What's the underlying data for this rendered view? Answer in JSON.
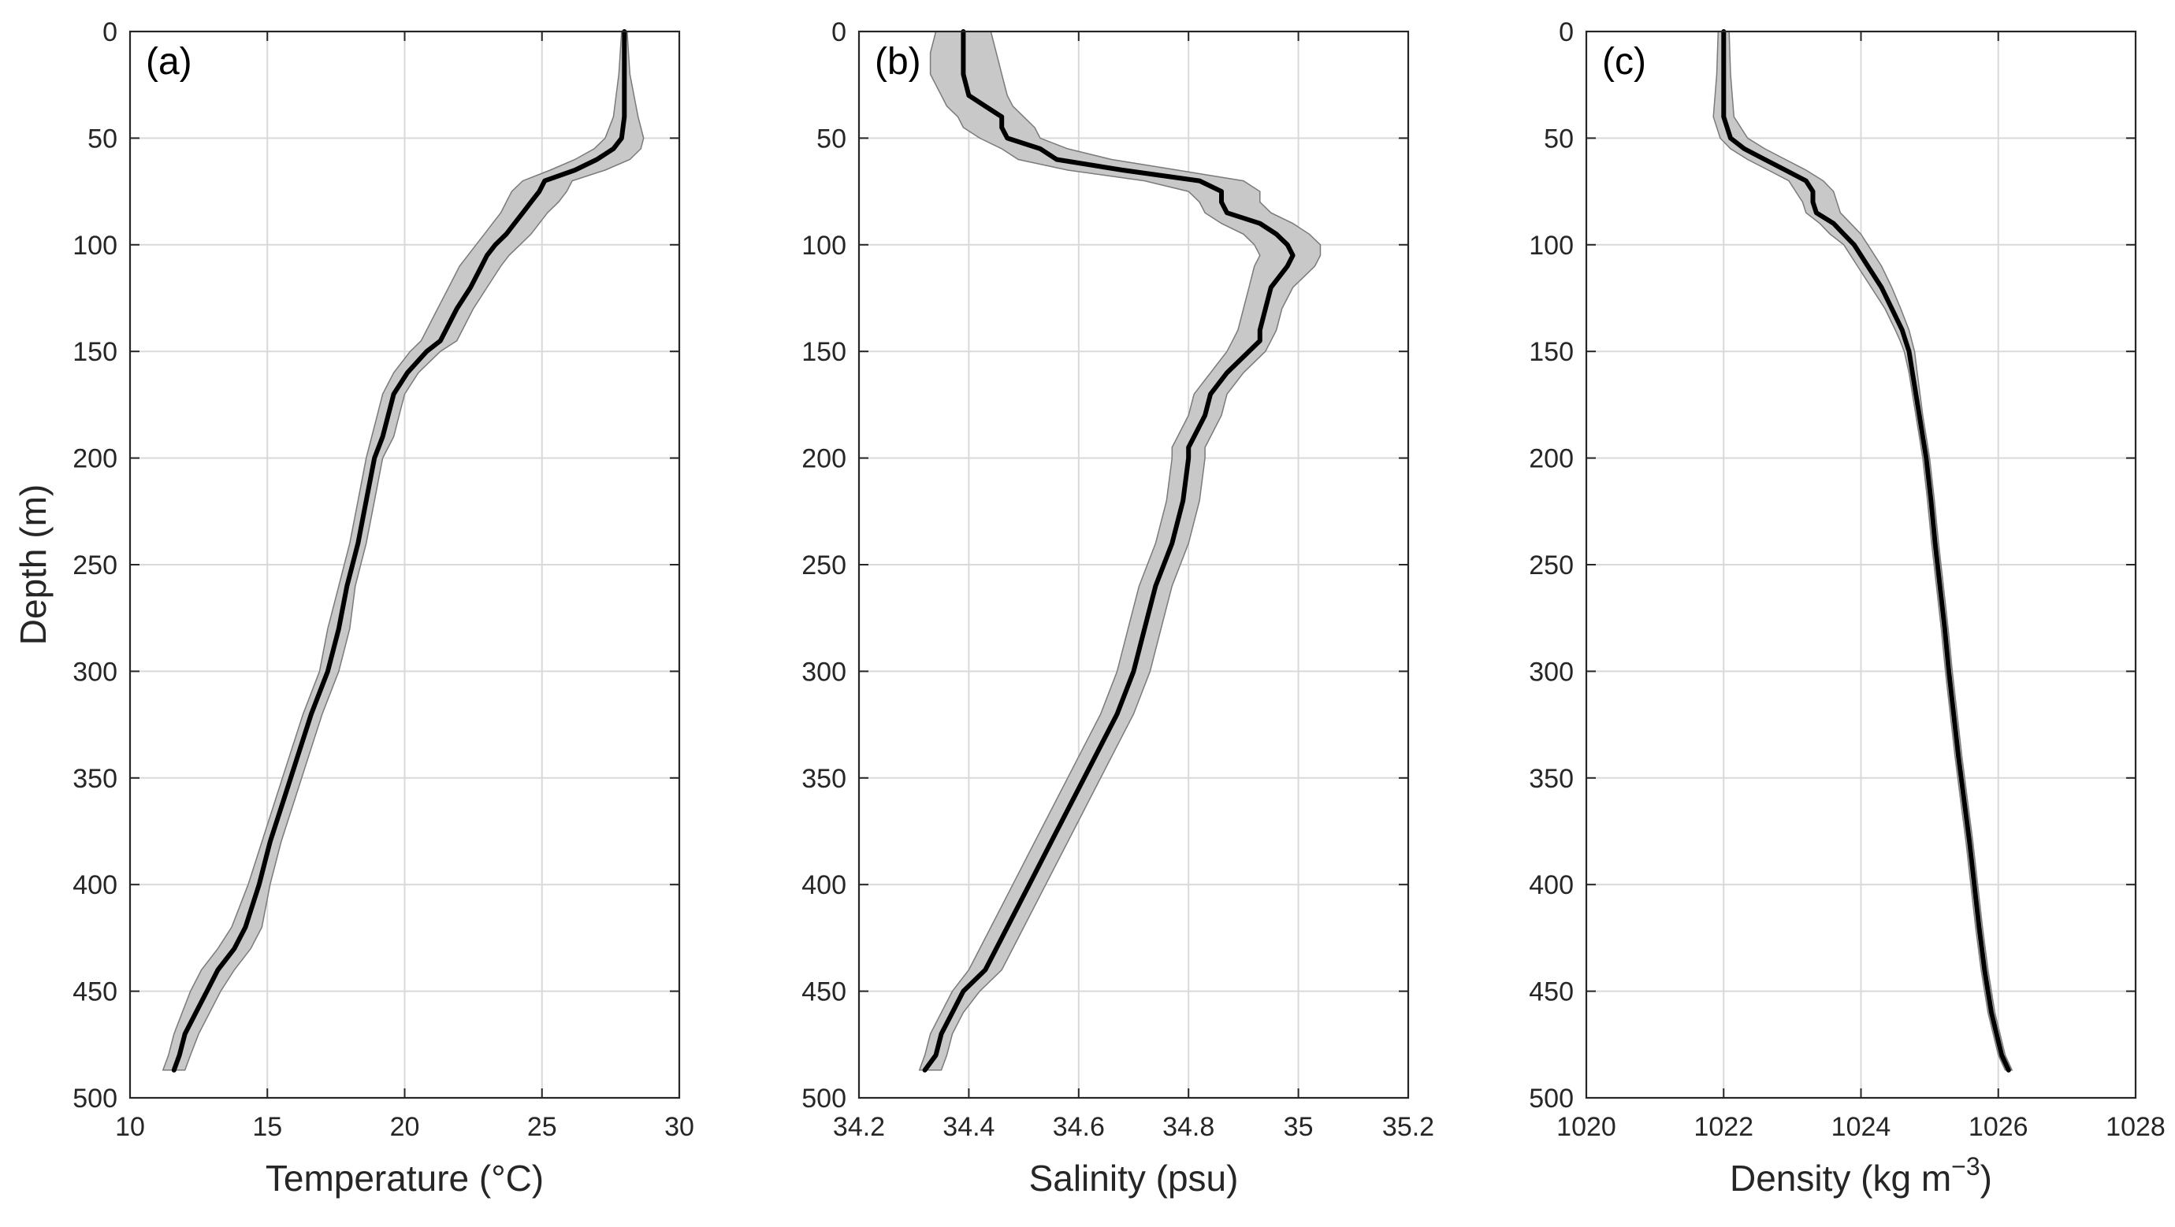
{
  "colors": {
    "band": "#c8c8c8",
    "band_edge": "#7a7a7a",
    "line": "#000000",
    "grid": "#d9d9d9",
    "axis": "#262626"
  },
  "chart_data": [
    {
      "type": "line",
      "panel_label": "(a)",
      "xlabel": "Temperature (°C)",
      "ylabel": "Depth (m)",
      "xlim": [
        10,
        30
      ],
      "ylim": [
        0,
        500
      ],
      "y_reversed": true,
      "xticks": [
        "10",
        "15",
        "20",
        "25",
        "30"
      ],
      "yticks": [
        "0",
        "50",
        "100",
        "150",
        "200",
        "250",
        "300",
        "350",
        "400",
        "450",
        "500"
      ],
      "grid": true,
      "series": [
        {
          "name": "mean",
          "depth": [
            0,
            20,
            40,
            50,
            55,
            60,
            65,
            70,
            75,
            80,
            85,
            90,
            95,
            100,
            105,
            110,
            120,
            130,
            140,
            145,
            150,
            160,
            170,
            180,
            190,
            200,
            220,
            240,
            260,
            280,
            300,
            320,
            340,
            360,
            380,
            400,
            420,
            430,
            440,
            450,
            460,
            470,
            480,
            487
          ],
          "values": [
            28.0,
            28.0,
            28.0,
            27.9,
            27.6,
            27.0,
            26.2,
            25.1,
            24.9,
            24.6,
            24.3,
            24.0,
            23.7,
            23.3,
            23.0,
            22.8,
            22.4,
            21.9,
            21.5,
            21.3,
            20.8,
            20.1,
            19.6,
            19.4,
            19.2,
            18.9,
            18.6,
            18.3,
            17.9,
            17.6,
            17.2,
            16.6,
            16.1,
            15.6,
            15.1,
            14.7,
            14.2,
            13.8,
            13.2,
            12.8,
            12.4,
            12.0,
            11.8,
            11.6
          ]
        },
        {
          "name": "spread_low",
          "depth": [
            0,
            20,
            40,
            50,
            55,
            60,
            65,
            70,
            75,
            80,
            85,
            90,
            95,
            100,
            105,
            110,
            120,
            130,
            140,
            145,
            150,
            160,
            170,
            180,
            190,
            200,
            220,
            240,
            260,
            280,
            300,
            320,
            340,
            360,
            380,
            400,
            420,
            430,
            440,
            450,
            460,
            470,
            480,
            487
          ],
          "values": [
            27.9,
            27.8,
            27.6,
            27.3,
            26.9,
            26.2,
            25.3,
            24.3,
            23.9,
            23.7,
            23.5,
            23.2,
            22.9,
            22.6,
            22.3,
            22.0,
            21.6,
            21.2,
            20.8,
            20.6,
            20.2,
            19.6,
            19.2,
            19.0,
            18.8,
            18.6,
            18.3,
            18.0,
            17.6,
            17.2,
            16.9,
            16.3,
            15.8,
            15.3,
            14.8,
            14.3,
            13.7,
            13.2,
            12.6,
            12.2,
            11.9,
            11.6,
            11.4,
            11.2
          ]
        },
        {
          "name": "spread_high",
          "depth": [
            0,
            20,
            40,
            50,
            55,
            60,
            65,
            70,
            75,
            80,
            85,
            90,
            95,
            100,
            105,
            110,
            120,
            130,
            140,
            145,
            150,
            160,
            170,
            180,
            190,
            200,
            220,
            240,
            260,
            280,
            300,
            320,
            340,
            360,
            380,
            400,
            420,
            430,
            440,
            450,
            460,
            470,
            480,
            487
          ],
          "values": [
            28.1,
            28.2,
            28.5,
            28.7,
            28.6,
            28.2,
            27.3,
            26.1,
            25.9,
            25.6,
            25.2,
            24.9,
            24.6,
            24.2,
            23.8,
            23.5,
            23.0,
            22.5,
            22.1,
            21.9,
            21.3,
            20.5,
            20.0,
            19.8,
            19.6,
            19.2,
            18.9,
            18.6,
            18.2,
            18.0,
            17.6,
            17.0,
            16.5,
            16.0,
            15.5,
            15.1,
            14.8,
            14.4,
            13.8,
            13.3,
            12.9,
            12.5,
            12.2,
            12.0
          ]
        }
      ]
    },
    {
      "type": "line",
      "panel_label": "(b)",
      "xlabel": "Salinity (psu)",
      "ylabel": "",
      "xlim": [
        34.2,
        35.2
      ],
      "ylim": [
        0,
        500
      ],
      "y_reversed": true,
      "xticks": [
        "34.2",
        "34.4",
        "34.6",
        "34.8",
        "35",
        "35.2"
      ],
      "yticks": [
        "0",
        "50",
        "100",
        "150",
        "200",
        "250",
        "300",
        "350",
        "400",
        "450",
        "500"
      ],
      "grid": true,
      "series": [
        {
          "name": "mean",
          "depth": [
            0,
            10,
            20,
            30,
            35,
            40,
            45,
            50,
            55,
            60,
            65,
            70,
            75,
            80,
            85,
            90,
            95,
            100,
            105,
            110,
            120,
            130,
            140,
            145,
            150,
            160,
            170,
            180,
            190,
            195,
            200,
            220,
            240,
            260,
            280,
            300,
            320,
            340,
            360,
            380,
            400,
            420,
            440,
            450,
            460,
            470,
            480,
            487
          ],
          "values": [
            34.39,
            34.39,
            34.39,
            34.4,
            34.43,
            34.46,
            34.46,
            34.47,
            34.53,
            34.56,
            34.68,
            34.82,
            34.86,
            34.86,
            34.87,
            34.93,
            34.96,
            34.98,
            34.99,
            34.98,
            34.95,
            34.94,
            34.93,
            34.93,
            34.91,
            34.87,
            34.84,
            34.83,
            34.81,
            34.8,
            34.8,
            34.79,
            34.77,
            34.74,
            34.72,
            34.7,
            34.67,
            34.63,
            34.59,
            34.55,
            34.51,
            34.47,
            34.43,
            34.39,
            34.37,
            34.35,
            34.34,
            34.32
          ]
        },
        {
          "name": "spread_low",
          "depth": [
            0,
            10,
            20,
            30,
            35,
            40,
            45,
            50,
            55,
            60,
            65,
            70,
            75,
            80,
            85,
            90,
            95,
            100,
            105,
            110,
            120,
            130,
            140,
            145,
            150,
            160,
            170,
            180,
            190,
            195,
            200,
            220,
            240,
            260,
            280,
            300,
            320,
            340,
            360,
            380,
            400,
            420,
            440,
            450,
            460,
            470,
            480,
            487
          ],
          "values": [
            34.34,
            34.33,
            34.33,
            34.35,
            34.36,
            34.38,
            34.39,
            34.42,
            34.46,
            34.49,
            34.58,
            34.72,
            34.8,
            34.82,
            34.83,
            34.86,
            34.9,
            34.92,
            34.93,
            34.92,
            34.91,
            34.9,
            34.89,
            34.88,
            34.87,
            34.84,
            34.81,
            34.8,
            34.78,
            34.77,
            34.77,
            34.76,
            34.74,
            34.71,
            34.69,
            34.67,
            34.64,
            34.6,
            34.56,
            34.52,
            34.48,
            34.44,
            34.4,
            34.37,
            34.35,
            34.33,
            34.32,
            34.31
          ]
        },
        {
          "name": "spread_high",
          "depth": [
            0,
            10,
            20,
            30,
            35,
            40,
            45,
            50,
            55,
            60,
            65,
            70,
            75,
            80,
            85,
            90,
            95,
            100,
            105,
            110,
            120,
            130,
            140,
            145,
            150,
            160,
            170,
            180,
            190,
            195,
            200,
            220,
            240,
            260,
            280,
            300,
            320,
            340,
            360,
            380,
            400,
            420,
            440,
            450,
            460,
            470,
            480,
            487
          ],
          "values": [
            34.44,
            34.45,
            34.46,
            34.47,
            34.48,
            34.5,
            34.52,
            34.53,
            34.58,
            34.66,
            34.78,
            34.9,
            34.93,
            34.93,
            34.95,
            34.99,
            35.02,
            35.04,
            35.04,
            35.03,
            34.99,
            34.97,
            34.96,
            34.95,
            34.94,
            34.9,
            34.87,
            34.86,
            34.84,
            34.83,
            34.83,
            34.82,
            34.8,
            34.77,
            34.75,
            34.73,
            34.7,
            34.66,
            34.62,
            34.58,
            34.54,
            34.5,
            34.46,
            34.42,
            34.39,
            34.37,
            34.36,
            34.35
          ]
        }
      ]
    },
    {
      "type": "line",
      "panel_label": "(c)",
      "xlabel": "Density (kg m",
      "xlabel_sup": "−3",
      "xlabel_end": ")",
      "ylabel": "",
      "xlim": [
        1020,
        1028
      ],
      "ylim": [
        0,
        500
      ],
      "y_reversed": true,
      "xticks": [
        "1020",
        "1022",
        "1024",
        "1026",
        "1028"
      ],
      "yticks": [
        "0",
        "50",
        "100",
        "150",
        "200",
        "250",
        "300",
        "350",
        "400",
        "450",
        "500"
      ],
      "grid": true,
      "series": [
        {
          "name": "mean",
          "depth": [
            0,
            20,
            40,
            50,
            55,
            60,
            65,
            70,
            75,
            80,
            85,
            90,
            95,
            100,
            110,
            120,
            130,
            140,
            145,
            150,
            160,
            170,
            180,
            190,
            200,
            220,
            240,
            260,
            280,
            300,
            320,
            340,
            360,
            380,
            400,
            420,
            440,
            460,
            480,
            487
          ],
          "values": [
            1022.0,
            1022.0,
            1022.0,
            1022.1,
            1022.3,
            1022.6,
            1022.9,
            1023.2,
            1023.3,
            1023.3,
            1023.35,
            1023.6,
            1023.75,
            1023.9,
            1024.1,
            1024.3,
            1024.45,
            1024.6,
            1024.65,
            1024.7,
            1024.75,
            1024.8,
            1024.85,
            1024.9,
            1024.95,
            1025.02,
            1025.08,
            1025.15,
            1025.22,
            1025.28,
            1025.35,
            1025.42,
            1025.5,
            1025.58,
            1025.65,
            1025.72,
            1025.8,
            1025.9,
            1026.05,
            1026.15
          ]
        },
        {
          "name": "spread_low",
          "depth": [
            0,
            20,
            40,
            50,
            55,
            60,
            65,
            70,
            75,
            80,
            85,
            90,
            95,
            100,
            110,
            120,
            130,
            140,
            145,
            150,
            160,
            170,
            180,
            190,
            200,
            220,
            240,
            260,
            280,
            300,
            320,
            340,
            360,
            380,
            400,
            420,
            440,
            460,
            480,
            487
          ],
          "values": [
            1021.92,
            1021.9,
            1021.85,
            1021.95,
            1022.1,
            1022.35,
            1022.65,
            1022.95,
            1023.05,
            1023.15,
            1023.2,
            1023.4,
            1023.55,
            1023.75,
            1023.95,
            1024.15,
            1024.35,
            1024.5,
            1024.57,
            1024.63,
            1024.7,
            1024.75,
            1024.8,
            1024.85,
            1024.9,
            1024.97,
            1025.03,
            1025.1,
            1025.17,
            1025.23,
            1025.3,
            1025.37,
            1025.45,
            1025.53,
            1025.6,
            1025.67,
            1025.75,
            1025.85,
            1026.0,
            1026.1
          ]
        },
        {
          "name": "spread_high",
          "depth": [
            0,
            20,
            40,
            50,
            55,
            60,
            65,
            70,
            75,
            80,
            85,
            90,
            95,
            100,
            110,
            120,
            130,
            140,
            145,
            150,
            160,
            170,
            180,
            190,
            200,
            220,
            240,
            260,
            280,
            300,
            320,
            340,
            360,
            380,
            400,
            420,
            440,
            460,
            480,
            487
          ],
          "values": [
            1022.08,
            1022.1,
            1022.15,
            1022.35,
            1022.6,
            1022.9,
            1023.2,
            1023.45,
            1023.6,
            1023.65,
            1023.7,
            1023.85,
            1024.0,
            1024.1,
            1024.3,
            1024.45,
            1024.58,
            1024.7,
            1024.74,
            1024.78,
            1024.82,
            1024.86,
            1024.9,
            1024.95,
            1025.0,
            1025.07,
            1025.13,
            1025.2,
            1025.27,
            1025.33,
            1025.4,
            1025.47,
            1025.55,
            1025.63,
            1025.7,
            1025.77,
            1025.85,
            1025.95,
            1026.1,
            1026.2
          ]
        }
      ]
    }
  ]
}
